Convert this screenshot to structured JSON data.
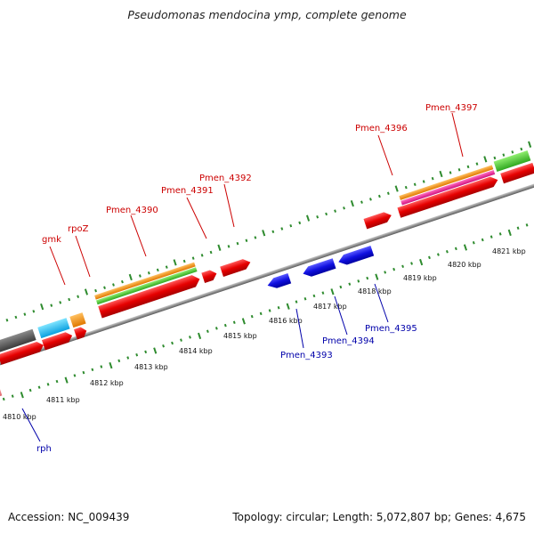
{
  "header": {
    "title": "Pseudomonas mendocina ymp, complete genome"
  },
  "footer": {
    "accession": "Accession: NC_009439",
    "summary": "Topology: circular; Length: 5,072,807 bp; Genes: 4,675"
  },
  "colors": {
    "backbone": "#8c8c8c",
    "tick": "#2e8b2e",
    "forward_label": "#cc0000",
    "reverse_label": "#0000aa"
  },
  "scale": {
    "labels": [
      "4810 kbp",
      "4811 kbp",
      "4812 kbp",
      "4813 kbp",
      "4814 kbp",
      "4815 kbp",
      "4816 kbp",
      "4817 kbp",
      "4818 kbp",
      "4819 kbp",
      "4820 kbp",
      "4821 kbp"
    ]
  },
  "forward_labels": [
    {
      "text": "gmk"
    },
    {
      "text": "rpoZ"
    },
    {
      "text": "Pmen_4390"
    },
    {
      "text": "Pmen_4391"
    },
    {
      "text": "Pmen_4392"
    },
    {
      "text": "Pmen_4396"
    },
    {
      "text": "Pmen_4397"
    }
  ],
  "reverse_labels": [
    {
      "text": "rph"
    },
    {
      "text": "Pmen_4393"
    },
    {
      "text": "Pmen_4394"
    },
    {
      "text": "Pmen_4395"
    }
  ]
}
